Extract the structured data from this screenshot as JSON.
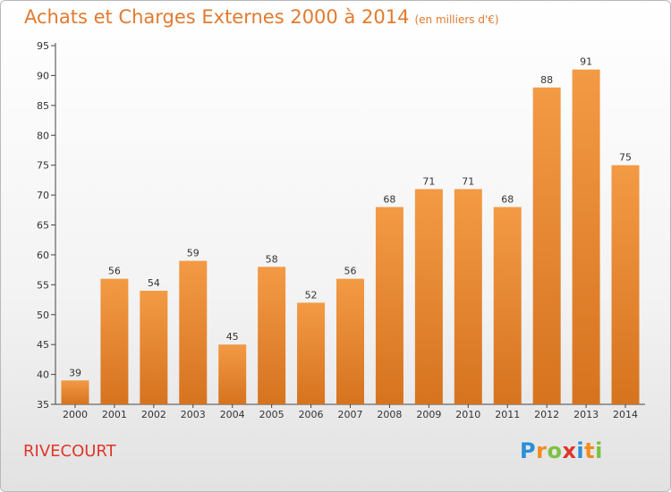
{
  "header": {
    "title": "Achats et Charges Externes 2000 à 2014",
    "subtitle": "(en milliers d'€)"
  },
  "footer": {
    "place": "RIVECOURT",
    "logo": {
      "letters": [
        "P",
        "r",
        "o",
        "x",
        "i",
        "t",
        "i"
      ],
      "colors": [
        "#2a8fd6",
        "#f28c1e",
        "#7cc242",
        "#e0362b",
        "#2a8fd6",
        "#f28c1e",
        "#7cc242"
      ]
    }
  },
  "chart_data": {
    "type": "bar",
    "title": "Achats et Charges Externes 2000 à 2014",
    "subtitle": "(en milliers d'€)",
    "xlabel": "",
    "ylabel": "",
    "categories": [
      "2000",
      "2001",
      "2002",
      "2003",
      "2004",
      "2005",
      "2006",
      "2007",
      "2008",
      "2009",
      "2010",
      "2011",
      "2012",
      "2013",
      "2014"
    ],
    "values": [
      39,
      56,
      54,
      59,
      45,
      58,
      52,
      56,
      68,
      71,
      71,
      68,
      88,
      91,
      75
    ],
    "ylim": [
      35,
      95
    ],
    "yticks": [
      35,
      40,
      45,
      50,
      55,
      60,
      65,
      70,
      75,
      80,
      85,
      90,
      95
    ],
    "grid": false,
    "bar_color": "#f39a45",
    "bar_color_dark": "#d6731f",
    "axis_color": "#444444"
  }
}
